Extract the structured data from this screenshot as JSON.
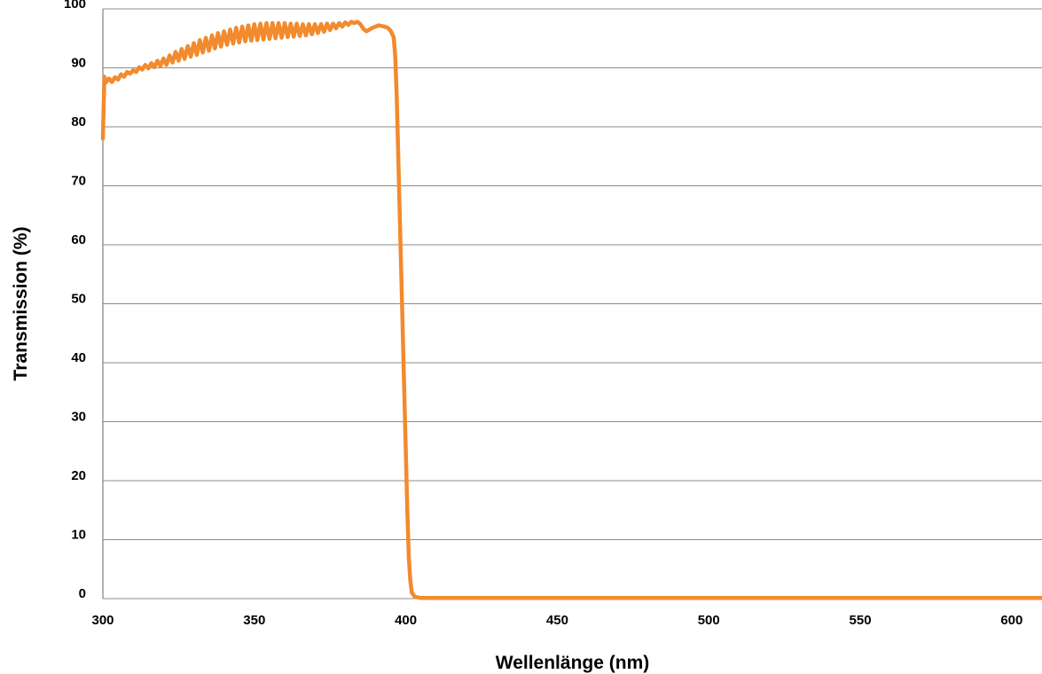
{
  "chart_data": {
    "type": "line",
    "title": "",
    "xlabel": "Wellenlänge (nm)",
    "ylabel": "Transmission (%)",
    "xlim": [
      300,
      610
    ],
    "ylim": [
      0,
      100
    ],
    "x_ticks": [
      300,
      350,
      400,
      450,
      500,
      550,
      600
    ],
    "y_ticks": [
      0,
      10,
      20,
      30,
      40,
      50,
      60,
      70,
      80,
      90,
      100
    ],
    "grid": "horizontal",
    "legend": "none",
    "series": [
      {
        "color": "#f28a2e",
        "points": [
          [
            300,
            78
          ],
          [
            300.5,
            88.5
          ],
          [
            301,
            87.5
          ],
          [
            302,
            88.2
          ],
          [
            303,
            87.6
          ],
          [
            304,
            88.4
          ],
          [
            305,
            88.0
          ],
          [
            306,
            88.9
          ],
          [
            307,
            88.5
          ],
          [
            308,
            89.3
          ],
          [
            309,
            89.0
          ],
          [
            310,
            89.6
          ],
          [
            311,
            89.3
          ],
          [
            312,
            90.1
          ],
          [
            313,
            89.7
          ],
          [
            314,
            90.5
          ],
          [
            315,
            89.9
          ],
          [
            316,
            90.8
          ],
          [
            317,
            90.1
          ],
          [
            318,
            91.2
          ],
          [
            319,
            90.3
          ],
          [
            320,
            91.6
          ],
          [
            321,
            90.5
          ],
          [
            322,
            92.1
          ],
          [
            323,
            90.9
          ],
          [
            324,
            92.7
          ],
          [
            325,
            91.2
          ],
          [
            326,
            93.2
          ],
          [
            327,
            91.5
          ],
          [
            328,
            93.7
          ],
          [
            329,
            91.9
          ],
          [
            330,
            94.2
          ],
          [
            331,
            92.2
          ],
          [
            332,
            94.7
          ],
          [
            333,
            92.6
          ],
          [
            334,
            95.1
          ],
          [
            335,
            92.9
          ],
          [
            336,
            95.5
          ],
          [
            337,
            93.3
          ],
          [
            338,
            95.9
          ],
          [
            339,
            93.6
          ],
          [
            340,
            96.2
          ],
          [
            341,
            93.9
          ],
          [
            342,
            96.5
          ],
          [
            343,
            94.1
          ],
          [
            344,
            96.8
          ],
          [
            345,
            94.3
          ],
          [
            346,
            97.0
          ],
          [
            347,
            94.5
          ],
          [
            348,
            97.2
          ],
          [
            349,
            94.6
          ],
          [
            350,
            97.4
          ],
          [
            351,
            94.7
          ],
          [
            352,
            97.5
          ],
          [
            353,
            94.8
          ],
          [
            354,
            97.6
          ],
          [
            355,
            94.9
          ],
          [
            356,
            97.6
          ],
          [
            357,
            95.0
          ],
          [
            358,
            97.6
          ],
          [
            359,
            95.1
          ],
          [
            360,
            97.6
          ],
          [
            361,
            95.2
          ],
          [
            362,
            97.5
          ],
          [
            363,
            95.3
          ],
          [
            364,
            97.5
          ],
          [
            365,
            95.4
          ],
          [
            366,
            97.4
          ],
          [
            367,
            95.5
          ],
          [
            368,
            97.4
          ],
          [
            369,
            95.7
          ],
          [
            370,
            97.4
          ],
          [
            371,
            95.9
          ],
          [
            372,
            97.4
          ],
          [
            373,
            96.1
          ],
          [
            374,
            97.5
          ],
          [
            375,
            96.4
          ],
          [
            376,
            97.5
          ],
          [
            377,
            96.7
          ],
          [
            378,
            97.6
          ],
          [
            379,
            97.0
          ],
          [
            380,
            97.7
          ],
          [
            381,
            97.3
          ],
          [
            382,
            97.8
          ],
          [
            383,
            97.6
          ],
          [
            384,
            97.8
          ],
          [
            385,
            97.4
          ],
          [
            386,
            96.6
          ],
          [
            387,
            96.2
          ],
          [
            388,
            96.5
          ],
          [
            389,
            96.8
          ],
          [
            390,
            97.0
          ],
          [
            391,
            97.2
          ],
          [
            392,
            97.1
          ],
          [
            393,
            97.0
          ],
          [
            394,
            96.8
          ],
          [
            395,
            96.3
          ],
          [
            396,
            95.2
          ],
          [
            396.5,
            92.0
          ],
          [
            397,
            85.0
          ],
          [
            397.5,
            75.0
          ],
          [
            398,
            65.0
          ],
          [
            398.5,
            55.0
          ],
          [
            399,
            45.0
          ],
          [
            399.5,
            35.0
          ],
          [
            400,
            25.0
          ],
          [
            400.5,
            15.0
          ],
          [
            401,
            7.0
          ],
          [
            401.5,
            3.0
          ],
          [
            402,
            1.0
          ],
          [
            403,
            0.3
          ],
          [
            405,
            0.1
          ],
          [
            420,
            0.1
          ],
          [
            450,
            0.1
          ],
          [
            500,
            0.1
          ],
          [
            550,
            0.1
          ],
          [
            600,
            0.1
          ],
          [
            610,
            0.1
          ]
        ]
      }
    ]
  }
}
